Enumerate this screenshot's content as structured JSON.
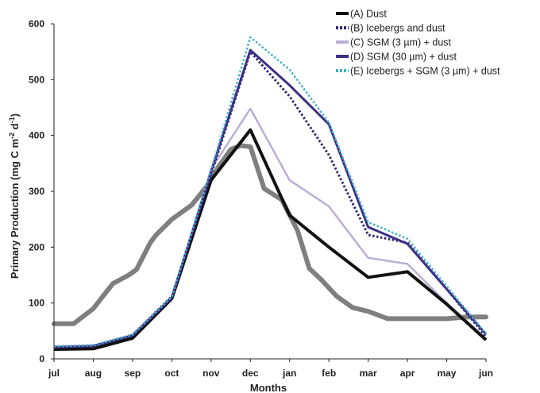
{
  "chart_data": {
    "type": "line",
    "title": "",
    "xlabel": "Months",
    "ylabel": "Primary Production (mg C m",
    "ylabel_sup1": "-2",
    "ylabel_mid": " d",
    "ylabel_sup2": "-1",
    "ylabel_end": ")",
    "categories": [
      "jul",
      "aug",
      "sep",
      "oct",
      "nov",
      "dec",
      "jan",
      "feb",
      "mar",
      "apr",
      "may",
      "jun"
    ],
    "ylim": [
      0,
      600
    ],
    "yticks": [
      "0",
      "100",
      "200",
      "300",
      "400",
      "500",
      "600"
    ],
    "grid": false,
    "legend_position": "top-right",
    "series": [
      {
        "name": "(A) Dust",
        "color": "#111111",
        "dash": "solid",
        "values": [
          17,
          18,
          37,
          108,
          320,
          410,
          257,
          200,
          146,
          156,
          98,
          34
        ]
      },
      {
        "name": "(B) Icebergs and dust",
        "color": "#2c2a6e",
        "dash": "dotted",
        "values": [
          22,
          24,
          43,
          112,
          330,
          550,
          470,
          365,
          222,
          208,
          125,
          40
        ]
      },
      {
        "name": "(C) SGM (3 µm) + dust",
        "color": "#bbaed4",
        "dash": "solid",
        "values": [
          19,
          20,
          40,
          108,
          340,
          448,
          320,
          273,
          181,
          170,
          100,
          36
        ]
      },
      {
        "name": "(D) SGM (30 µm) + dust",
        "color": "#3d2f86",
        "dash": "solid",
        "values": [
          21,
          23,
          42,
          110,
          335,
          553,
          490,
          420,
          236,
          206,
          125,
          44
        ]
      },
      {
        "name": "(E) Icebergs + SGM (3 µm) + dust",
        "color": "#3fb0c8",
        "dash": "dotted",
        "values": [
          22,
          24,
          43,
          111,
          338,
          576,
          518,
          423,
          245,
          215,
          130,
          45
        ]
      }
    ],
    "background_series": {
      "color": "#7f7f7f",
      "x": [
        0,
        0.5,
        1,
        1.5,
        1.9,
        2.1,
        2.45,
        2.6,
        3,
        3.5,
        3.9,
        4.2,
        4.5,
        4.75,
        5,
        5.35,
        5.8,
        6.2,
        6.5,
        6.8,
        7.2,
        7.6,
        8.0,
        8.5,
        9.0,
        9.5,
        10.0,
        10.5,
        11
      ],
      "values": [
        63,
        63,
        90,
        135,
        150,
        160,
        208,
        222,
        250,
        275,
        310,
        345,
        375,
        382,
        380,
        305,
        285,
        230,
        162,
        142,
        112,
        92,
        85,
        72,
        72,
        72,
        72,
        75,
        75
      ]
    }
  }
}
